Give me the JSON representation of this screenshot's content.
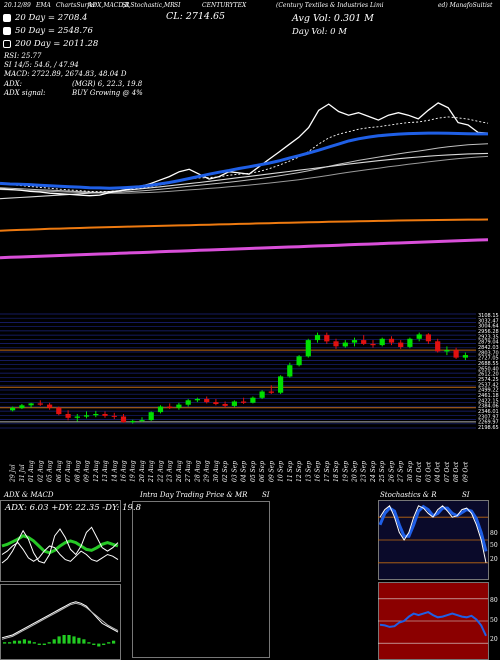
{
  "header": {
    "items": [
      "20.12/89",
      "EMA",
      "ChartsSurfer",
      "ADX,MACD,R",
      "SI,Stochastic,MR",
      "SI",
      "CENTURYTEX",
      "(Century Textiles & Industries Limi",
      "ed) ManafoSuitist"
    ],
    "close_label": "CL: 2714.65",
    "avg_vol": "Avg Vol: 0.301 M",
    "day_vol": "Day Vol: 0   M"
  },
  "legend": [
    {
      "label": "20  Day = 2708.4",
      "filled": true
    },
    {
      "label": "50  Day = 2548.76",
      "filled": true
    },
    {
      "label": "200  Day = 2011.28",
      "filled": false
    }
  ],
  "indicators": {
    "rsi": "RSI: 25.77",
    "si": "SI 14/5: 54.6, / 47.94",
    "macd": "MACD: 2722.89, 2674.83, 48.04  D",
    "adx": "ADX:",
    "adx_val": "(MGR) 6, 22.3, 19.8",
    "adx_signal": "ADX  signal:",
    "adx_signal_val": "BUY Growing @ 4%"
  },
  "dates": [
    "29 Jul",
    "31 Jul",
    "01 Aug",
    "02 Aug",
    "05 Aug",
    "06 Aug",
    "07 Aug",
    "08 Aug",
    "09 Aug",
    "12 Aug",
    "13 Aug",
    "14 Aug",
    "16 Aug",
    "19 Aug",
    "20 Aug",
    "21 Aug",
    "22 Aug",
    "23 Aug",
    "26 Aug",
    "27 Aug",
    "28 Aug",
    "29 Aug",
    "30 Aug",
    "02 Sep",
    "03 Sep",
    "04 Sep",
    "05 Sep",
    "06 Sep",
    "09 Sep",
    "10 Sep",
    "11 Sep",
    "12 Sep",
    "13 Sep",
    "16 Sep",
    "17 Sep",
    "18 Sep",
    "19 Sep",
    "20 Sep",
    "23 Sep",
    "24 Sep",
    "25 Sep",
    "26 Sep",
    "27 Sep",
    "30 Sep",
    "01 Oct",
    "03 Oct",
    "04 Oct",
    "07 Oct",
    "08 Oct",
    "09 Oct"
  ],
  "price_axis": [
    "3108.15",
    "3032.47",
    "3004.64",
    "2956.28",
    "2923.35",
    "2879.04",
    "2842.03",
    "2803.70",
    "2727.05",
    "2688.55",
    "2650.40",
    "2612.20",
    "2574.25",
    "2537.42",
    "2499.22",
    "2461.18",
    "2422.15",
    "2384.06",
    "2346.01",
    "2307.97",
    "2269.97",
    "2198.65"
  ],
  "panels": {
    "adx_title": "ADX  & MACD",
    "adx_values": "ADX: 6.03  +DY: 22.35  -DY: 19.8",
    "intraday_title": "Intra  Day Trading Price  & MR",
    "intraday_si": "SI",
    "stoch_title": "Stochastics & R",
    "stoch_si": "SI",
    "stoch_levels": [
      "80",
      "50",
      "20"
    ],
    "rsi_levels": [
      "80",
      "50",
      "20"
    ]
  },
  "chart_data": [
    {
      "type": "line",
      "title": "CL: 2714.65",
      "series": [
        {
          "name": "20  Day = 2708.4",
          "values": [
            2305,
            2300,
            2298,
            2295,
            2290,
            2286,
            2282,
            2278,
            2275,
            2270,
            2268,
            2266,
            2268,
            2272,
            2278,
            2288,
            2300,
            2312,
            2328,
            2345,
            2362,
            2380,
            2396,
            2410,
            2426,
            2440,
            2455,
            2470,
            2488,
            2510,
            2530,
            2552,
            2575,
            2600,
            2625,
            2650,
            2668,
            2682,
            2692,
            2700,
            2706,
            2710,
            2712,
            2714,
            2714,
            2713,
            2711,
            2709,
            2708,
            2708
          ]
        },
        {
          "name": "50  Day = 2548.76",
          "values": [
            2180,
            2185,
            2190,
            2195,
            2200,
            2205,
            2210,
            2215,
            2220,
            2226,
            2232,
            2238,
            2245,
            2252,
            2260,
            2268,
            2276,
            2285,
            2294,
            2303,
            2312,
            2322,
            2332,
            2342,
            2352,
            2362,
            2372,
            2382,
            2392,
            2402,
            2412,
            2422,
            2432,
            2442,
            2452,
            2462,
            2472,
            2481,
            2490,
            2498,
            2506,
            2513,
            2520,
            2526,
            2532,
            2537,
            2541,
            2545,
            2547,
            2549
          ]
        },
        {
          "name": "200  Day = 2011.28",
          "values": [
            1920,
            1923,
            1926,
            1929,
            1932,
            1935,
            1937,
            1940,
            1942,
            1945,
            1947,
            1949,
            1951,
            1953,
            1955,
            1957,
            1959,
            1961,
            1963,
            1965,
            1967,
            1969,
            1971,
            1973,
            1975,
            1977,
            1979,
            1981,
            1983,
            1985,
            1987,
            1989,
            1990,
            1992,
            1994,
            1995,
            1997,
            1998,
            2000,
            2001,
            2003,
            2004,
            2005,
            2006,
            2007,
            2008,
            2009,
            2010,
            2010,
            2011
          ]
        },
        {
          "values": [
            2260,
            2255,
            2250,
            2240,
            2235,
            2225,
            2220,
            2215,
            2210,
            2205,
            2210,
            2230,
            2245,
            2260,
            2280,
            2300,
            2330,
            2360,
            2400,
            2420,
            2380,
            2340,
            2360,
            2400,
            2390,
            2380,
            2440,
            2500,
            2560,
            2620,
            2680,
            2760,
            2900,
            2950,
            2890,
            2860,
            2880,
            2850,
            2820,
            2860,
            2880,
            2860,
            2830,
            2900,
            2960,
            2920,
            2800,
            2780,
            2720,
            2714
          ]
        },
        {
          "values": [
            2300,
            2295,
            2288,
            2280,
            2272,
            2266,
            2258,
            2252,
            2246,
            2240,
            2238,
            2240,
            2246,
            2254,
            2264,
            2276,
            2290,
            2306,
            2326,
            2342,
            2350,
            2352,
            2358,
            2372,
            2380,
            2386,
            2402,
            2424,
            2452,
            2484,
            2520,
            2565,
            2625,
            2675,
            2705,
            2726,
            2746,
            2758,
            2766,
            2778,
            2790,
            2800,
            2805,
            2818,
            2836,
            2846,
            2838,
            2828,
            2810,
            2795
          ]
        },
        {
          "values": [
            2270,
            2266,
            2262,
            2258,
            2254,
            2250,
            2246,
            2242,
            2238,
            2234,
            2232,
            2232,
            2234,
            2238,
            2243,
            2249,
            2256,
            2264,
            2273,
            2282,
            2290,
            2298,
            2306,
            2315,
            2324,
            2333,
            2343,
            2354,
            2366,
            2379,
            2393,
            2408,
            2425,
            2443,
            2460,
            2476,
            2492,
            2506,
            2519,
            2532,
            2545,
            2557,
            2568,
            2580,
            2593,
            2604,
            2612,
            2619,
            2624,
            2628
          ]
        },
        {
          "values": [
            2255,
            2252,
            2249,
            2246,
            2243,
            2240,
            2237,
            2234,
            2231,
            2228,
            2226,
            2225,
            2225,
            2226,
            2228,
            2231,
            2235,
            2240,
            2246,
            2252,
            2258,
            2264,
            2270,
            2277,
            2284,
            2291,
            2299,
            2307,
            2316,
            2325,
            2335,
            2346,
            2358,
            2370,
            2383,
            2395,
            2407,
            2418,
            2429,
            2440,
            2450,
            2460,
            2470,
            2480,
            2490,
            2499,
            2507,
            2514,
            2520,
            2525
          ]
        },
        {
          "values": [
            1700,
            1703,
            1706,
            1709,
            1712,
            1715,
            1718,
            1721,
            1724,
            1727,
            1730,
            1733,
            1736,
            1739,
            1742,
            1745,
            1748,
            1751,
            1754,
            1757,
            1760,
            1763,
            1766,
            1769,
            1772,
            1775,
            1778,
            1781,
            1784,
            1787,
            1790,
            1793,
            1796,
            1799,
            1802,
            1805,
            1808,
            1811,
            1814,
            1817,
            1820,
            1823,
            1826,
            1829,
            1832,
            1835,
            1838,
            1841,
            1844,
            1847
          ]
        }
      ],
      "ylim": [
        1600,
        3000
      ]
    },
    {
      "type": "candlestick",
      "ylim": [
        2198.65,
        3108.15
      ],
      "grid": true,
      "candles": [
        {
          "o": 2340,
          "h": 2370,
          "l": 2330,
          "c": 2360
        },
        {
          "o": 2358,
          "h": 2390,
          "l": 2350,
          "c": 2380
        },
        {
          "o": 2380,
          "h": 2400,
          "l": 2360,
          "c": 2395
        },
        {
          "o": 2395,
          "h": 2420,
          "l": 2375,
          "c": 2385
        },
        {
          "o": 2385,
          "h": 2400,
          "l": 2345,
          "c": 2360
        },
        {
          "o": 2360,
          "h": 2370,
          "l": 2300,
          "c": 2310
        },
        {
          "o": 2310,
          "h": 2340,
          "l": 2260,
          "c": 2280
        },
        {
          "o": 2280,
          "h": 2310,
          "l": 2250,
          "c": 2290
        },
        {
          "o": 2290,
          "h": 2330,
          "l": 2275,
          "c": 2300
        },
        {
          "o": 2300,
          "h": 2335,
          "l": 2285,
          "c": 2310
        },
        {
          "o": 2310,
          "h": 2330,
          "l": 2280,
          "c": 2295
        },
        {
          "o": 2295,
          "h": 2320,
          "l": 2270,
          "c": 2290
        },
        {
          "o": 2290,
          "h": 2310,
          "l": 2240,
          "c": 2245
        },
        {
          "o": 2245,
          "h": 2265,
          "l": 2235,
          "c": 2255
        },
        {
          "o": 2255,
          "h": 2285,
          "l": 2245,
          "c": 2262
        },
        {
          "o": 2262,
          "h": 2330,
          "l": 2255,
          "c": 2325
        },
        {
          "o": 2325,
          "h": 2380,
          "l": 2315,
          "c": 2370
        },
        {
          "o": 2370,
          "h": 2395,
          "l": 2350,
          "c": 2360
        },
        {
          "o": 2360,
          "h": 2400,
          "l": 2345,
          "c": 2385
        },
        {
          "o": 2385,
          "h": 2430,
          "l": 2370,
          "c": 2420
        },
        {
          "o": 2420,
          "h": 2440,
          "l": 2405,
          "c": 2430
        },
        {
          "o": 2430,
          "h": 2450,
          "l": 2395,
          "c": 2405
        },
        {
          "o": 2405,
          "h": 2430,
          "l": 2380,
          "c": 2390
        },
        {
          "o": 2390,
          "h": 2410,
          "l": 2360,
          "c": 2375
        },
        {
          "o": 2375,
          "h": 2420,
          "l": 2365,
          "c": 2410
        },
        {
          "o": 2410,
          "h": 2440,
          "l": 2390,
          "c": 2400
        },
        {
          "o": 2400,
          "h": 2450,
          "l": 2395,
          "c": 2440
        },
        {
          "o": 2440,
          "h": 2500,
          "l": 2430,
          "c": 2490
        },
        {
          "o": 2490,
          "h": 2540,
          "l": 2470,
          "c": 2480
        },
        {
          "o": 2480,
          "h": 2620,
          "l": 2470,
          "c": 2610
        },
        {
          "o": 2610,
          "h": 2720,
          "l": 2600,
          "c": 2700
        },
        {
          "o": 2700,
          "h": 2780,
          "l": 2690,
          "c": 2770
        },
        {
          "o": 2770,
          "h": 2910,
          "l": 2760,
          "c": 2900
        },
        {
          "o": 2900,
          "h": 2960,
          "l": 2880,
          "c": 2940
        },
        {
          "o": 2940,
          "h": 2960,
          "l": 2870,
          "c": 2890
        },
        {
          "o": 2890,
          "h": 2910,
          "l": 2830,
          "c": 2850
        },
        {
          "o": 2850,
          "h": 2900,
          "l": 2840,
          "c": 2880
        },
        {
          "o": 2880,
          "h": 2920,
          "l": 2850,
          "c": 2900
        },
        {
          "o": 2900,
          "h": 2940,
          "l": 2860,
          "c": 2870
        },
        {
          "o": 2870,
          "h": 2900,
          "l": 2840,
          "c": 2860
        },
        {
          "o": 2860,
          "h": 2920,
          "l": 2850,
          "c": 2910
        },
        {
          "o": 2910,
          "h": 2930,
          "l": 2860,
          "c": 2880
        },
        {
          "o": 2880,
          "h": 2900,
          "l": 2830,
          "c": 2845
        },
        {
          "o": 2845,
          "h": 2920,
          "l": 2835,
          "c": 2910
        },
        {
          "o": 2910,
          "h": 2960,
          "l": 2890,
          "c": 2945
        },
        {
          "o": 2945,
          "h": 2955,
          "l": 2870,
          "c": 2890
        },
        {
          "o": 2890,
          "h": 2910,
          "l": 2800,
          "c": 2810
        },
        {
          "o": 2810,
          "h": 2850,
          "l": 2780,
          "c": 2820
        },
        {
          "o": 2820,
          "h": 2840,
          "l": 2750,
          "c": 2760
        },
        {
          "o": 2760,
          "h": 2800,
          "l": 2740,
          "c": 2780
        }
      ]
    },
    {
      "type": "line",
      "title": "ADX  & MACD",
      "series": [
        {
          "values": [
            40,
            42,
            45,
            48,
            52,
            50,
            46,
            40,
            34,
            32,
            35,
            40,
            44,
            46,
            44,
            40,
            36,
            35,
            38,
            42,
            44,
            42,
            40
          ]
        },
        {
          "values": [
            20,
            25,
            34,
            46,
            58,
            48,
            32,
            22,
            20,
            30,
            52,
            60,
            50,
            36,
            30,
            40,
            56,
            62,
            50,
            38,
            34,
            38,
            44
          ]
        },
        {
          "values": [
            30,
            34,
            40,
            44,
            36,
            26,
            22,
            26,
            34,
            40,
            38,
            30,
            24,
            22,
            28,
            34,
            30,
            24,
            22,
            26,
            30,
            28,
            24
          ]
        }
      ],
      "ylim": [
        0,
        80
      ]
    },
    {
      "type": "bar",
      "series": [
        {
          "values": [
            1,
            1,
            2,
            2,
            3,
            2,
            1,
            -1,
            -1,
            1,
            3,
            5,
            6,
            6,
            5,
            4,
            3,
            1,
            -1,
            -2,
            -1,
            1,
            2
          ]
        },
        {
          "values": [
            4,
            5,
            6,
            8,
            10,
            12,
            14,
            16,
            18,
            20,
            22,
            24,
            26,
            28,
            29,
            28,
            26,
            22,
            18,
            14,
            12,
            10,
            8
          ]
        },
        {
          "values": [
            3,
            4,
            5,
            7,
            9,
            11,
            13,
            15,
            17,
            19,
            21,
            23,
            25,
            27,
            28,
            27,
            25,
            22,
            19,
            16,
            13,
            11,
            9
          ]
        }
      ],
      "ylim": [
        -10,
        40
      ]
    },
    {
      "type": "line",
      "title": "Stochastics & R",
      "series": [
        {
          "values": [
            80,
            90,
            95,
            80,
            60,
            50,
            60,
            80,
            95,
            92,
            85,
            80,
            90,
            95,
            88,
            80,
            82,
            90,
            92,
            85,
            70,
            50,
            20
          ]
        },
        {
          "values": [
            70,
            85,
            92,
            88,
            70,
            55,
            55,
            70,
            88,
            94,
            90,
            82,
            85,
            92,
            92,
            85,
            82,
            86,
            90,
            88,
            78,
            60,
            35
          ]
        }
      ],
      "ylim": [
        0,
        100
      ]
    },
    {
      "type": "line",
      "series": [
        {
          "values": [
            45,
            44,
            42,
            43,
            48,
            50,
            56,
            60,
            58,
            60,
            62,
            58,
            55,
            56,
            58,
            60,
            58,
            56,
            55,
            57,
            52,
            44,
            30
          ]
        }
      ],
      "ylim": [
        0,
        100
      ]
    }
  ]
}
